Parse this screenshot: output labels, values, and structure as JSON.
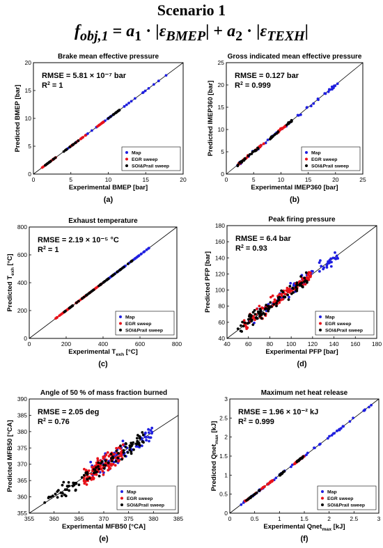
{
  "header": {
    "title": "Scenario 1",
    "formula": {
      "f": "f",
      "f_sub": "obj,1",
      "eq": " = ",
      "a1": "a",
      "a1_sub": "1",
      "dot1": " · |",
      "eps1": "ε",
      "eps1_sub": "BMEP",
      "plus": "| + ",
      "a2": "a",
      "a2_sub": "2",
      "dot2": " · |",
      "eps2": "ε",
      "eps2_sub": "TEXH",
      "end": "|"
    }
  },
  "legend_colors": {
    "Map": "#1f1fe0",
    "EGR sweep": "#e8121a",
    "SOI&Prail sweep": "#000000"
  },
  "chart_data": [
    {
      "type": "scatter",
      "panel": "(a)",
      "title": "Brake mean effective pressure",
      "xlabel": "Experimental BMEP [bar]",
      "ylabel": "Predicted BMEP [bar]",
      "xlim": [
        0,
        20
      ],
      "ylim": [
        0,
        20
      ],
      "xticks": [
        0,
        5,
        10,
        15,
        20
      ],
      "yticks": [
        0,
        5,
        10,
        15,
        20
      ],
      "grid": false,
      "legend_position": "bottom-right",
      "annotation": [
        "RMSE = 5.81 × 10⁻⁷ bar",
        "R² = 1"
      ],
      "identity_line": true,
      "series": [
        {
          "name": "Map",
          "color": "#1f1fe0",
          "spread": 0,
          "ranges": [
            [
              1,
              18
            ]
          ],
          "count": 40
        },
        {
          "name": "EGR sweep",
          "color": "#e8121a",
          "spread": 0,
          "ranges": [
            [
              1,
              3
            ],
            [
              5,
              7
            ],
            [
              8.5,
              9.5
            ]
          ],
          "count": 45
        },
        {
          "name": "SOI&Prail sweep",
          "color": "#000000",
          "spread": 0,
          "ranges": [
            [
              1.5,
              3
            ],
            [
              4,
              6
            ],
            [
              10,
              11.5
            ]
          ],
          "count": 45
        }
      ]
    },
    {
      "type": "scatter",
      "panel": "(b)",
      "title": "Gross indicated mean effective pressure",
      "xlabel": "Experimental IMEP360 [bar]",
      "ylabel": "Predicted IMEP360 [bar]",
      "xlim": [
        0,
        25
      ],
      "ylim": [
        0,
        25
      ],
      "xticks": [
        0,
        5,
        10,
        15,
        20,
        25
      ],
      "yticks": [
        0,
        5,
        10,
        15,
        20,
        25
      ],
      "grid": false,
      "legend_position": "bottom-right",
      "annotation": [
        "RMSE = 0.127 bar",
        "R² = 0.999"
      ],
      "identity_line": true,
      "series": [
        {
          "name": "Map",
          "color": "#1f1fe0",
          "spread": 0.25,
          "ranges": [
            [
              2,
              21
            ]
          ],
          "count": 45
        },
        {
          "name": "EGR sweep",
          "color": "#e8121a",
          "spread": 0.2,
          "ranges": [
            [
              2,
              4
            ],
            [
              5,
              7
            ],
            [
              9.5,
              11
            ]
          ],
          "count": 45
        },
        {
          "name": "SOI&Prail sweep",
          "color": "#000000",
          "spread": 0.2,
          "ranges": [
            [
              2,
              3.5
            ],
            [
              4,
              6
            ],
            [
              8,
              9.5
            ],
            [
              11,
              12
            ]
          ],
          "count": 50
        }
      ]
    },
    {
      "type": "scatter",
      "panel": "(c)",
      "title": "Exhaust temperature",
      "xlabel": "Experimental T_exh [°C]",
      "ylabel": "Predicted T_exh [°C]",
      "xlim": [
        0,
        800
      ],
      "ylim": [
        0,
        800
      ],
      "xticks": [
        0,
        200,
        400,
        600,
        800
      ],
      "yticks": [
        0,
        200,
        400,
        600,
        800
      ],
      "grid": false,
      "legend_position": "bottom-right",
      "annotation": [
        "RMSE = 2.19 × 10⁻⁵ °C",
        "R² = 1"
      ],
      "identity_line": true,
      "series": [
        {
          "name": "Map",
          "color": "#1f1fe0",
          "spread": 0,
          "ranges": [
            [
              400,
              650
            ]
          ],
          "count": 40
        },
        {
          "name": "EGR sweep",
          "color": "#e8121a",
          "spread": 0,
          "ranges": [
            [
              140,
              400
            ]
          ],
          "count": 60
        },
        {
          "name": "SOI&Prail sweep",
          "color": "#000000",
          "spread": 0,
          "ranges": [
            [
              190,
              560
            ]
          ],
          "count": 60
        }
      ]
    },
    {
      "type": "scatter",
      "panel": "(d)",
      "title": "Peak firing pressure",
      "xlabel": "Experimental PFP [bar]",
      "ylabel": "Predicted PFP [bar]",
      "xlim": [
        40,
        180
      ],
      "ylim": [
        40,
        180
      ],
      "xticks": [
        40,
        60,
        80,
        100,
        120,
        140,
        160,
        180
      ],
      "yticks": [
        40,
        60,
        80,
        100,
        120,
        140,
        160,
        180
      ],
      "grid": false,
      "legend_position": "bottom-right",
      "annotation": [
        "RMSE = 6.4 bar",
        "R² = 0.93"
      ],
      "identity_line": true,
      "series": [
        {
          "name": "Map",
          "color": "#1f1fe0",
          "spread": 7,
          "ranges": [
            [
              60,
              145
            ]
          ],
          "count": 60
        },
        {
          "name": "EGR sweep",
          "color": "#e8121a",
          "spread": 7,
          "ranges": [
            [
              55,
              120
            ]
          ],
          "count": 110
        },
        {
          "name": "SOI&Prail sweep",
          "color": "#000000",
          "spread": 7,
          "ranges": [
            [
              50,
              115
            ]
          ],
          "count": 90
        }
      ]
    },
    {
      "type": "scatter",
      "panel": "(e)",
      "title": "Angle of 50 % of mass fraction burned",
      "xlabel": "Experimental MFB50 [°CA]",
      "ylabel": "Predicted MFB50 [°CA]",
      "xlim": [
        355,
        385
      ],
      "ylim": [
        355,
        390
      ],
      "xticks": [
        355,
        360,
        365,
        370,
        375,
        380,
        385
      ],
      "yticks": [
        355,
        360,
        365,
        370,
        375,
        380,
        385,
        390
      ],
      "grid": false,
      "legend_position": "bottom-right",
      "annotation": [
        "RMSE = 2.05 deg",
        "R² = 0.76"
      ],
      "identity_line": true,
      "series": [
        {
          "name": "Map",
          "color": "#1f1fe0",
          "spread": 2.3,
          "ranges": [
            [
              367,
              380
            ]
          ],
          "count": 70
        },
        {
          "name": "EGR sweep",
          "color": "#e8121a",
          "spread": 2.3,
          "ranges": [
            [
              366,
              374
            ]
          ],
          "count": 120
        },
        {
          "name": "SOI&Prail sweep",
          "color": "#000000",
          "spread": 2.3,
          "ranges": [
            [
              358,
              378
            ]
          ],
          "count": 100
        }
      ]
    },
    {
      "type": "scatter",
      "panel": "(f)",
      "title": "Maximum net heat release",
      "xlabel": "Experimental Qnet_max [kJ]",
      "ylabel": "Predicted Qnet_max [kJ]",
      "xlim": [
        0,
        3
      ],
      "ylim": [
        0,
        3
      ],
      "xticks": [
        0,
        0.5,
        1,
        1.5,
        2,
        2.5,
        3
      ],
      "yticks": [
        0,
        0.5,
        1,
        1.5,
        2,
        2.5,
        3
      ],
      "grid": false,
      "legend_position": "bottom-right",
      "annotation": [
        "RMSE = 1.96 × 10⁻² kJ",
        "R² = 0.999"
      ],
      "identity_line": true,
      "series": [
        {
          "name": "Map",
          "color": "#1f1fe0",
          "spread": 0.02,
          "ranges": [
            [
              0.2,
              2.85
            ]
          ],
          "count": 55
        },
        {
          "name": "EGR sweep",
          "color": "#e8121a",
          "spread": 0.015,
          "ranges": [
            [
              0.3,
              0.9
            ],
            [
              1.3,
              1.5
            ]
          ],
          "count": 45
        },
        {
          "name": "SOI&Prail sweep",
          "color": "#000000",
          "spread": 0.015,
          "ranges": [
            [
              0.3,
              0.6
            ],
            [
              1.0,
              1.1
            ],
            [
              1.35,
              1.5
            ]
          ],
          "count": 50
        }
      ]
    }
  ]
}
